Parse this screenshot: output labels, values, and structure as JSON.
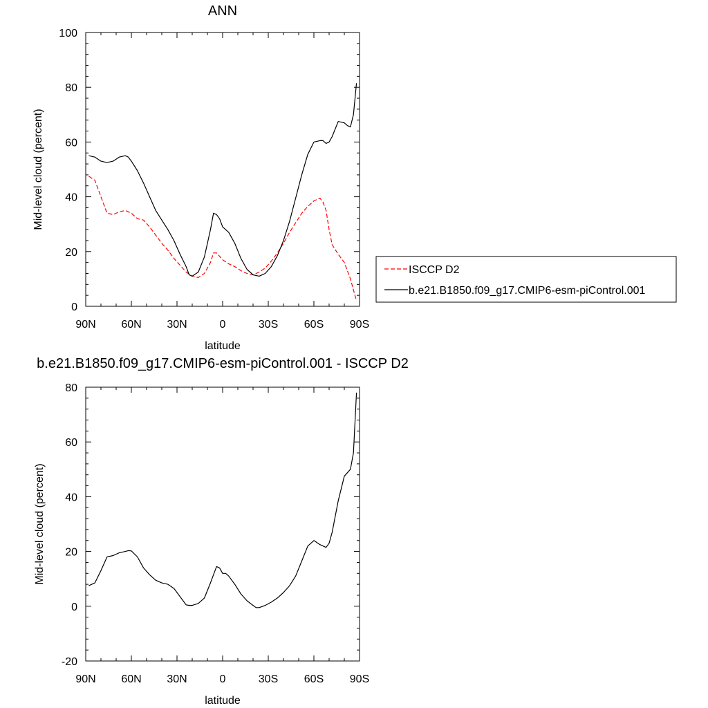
{
  "chart_data": [
    {
      "type": "line",
      "title": "ANN",
      "xlabel": "latitude",
      "ylabel": "Mid-level cloud (percent)",
      "ylim": [
        0,
        100
      ],
      "xlim": [
        90,
        -90
      ],
      "xticks": [
        90,
        60,
        30,
        0,
        -30,
        -60,
        -90
      ],
      "xtick_labels": [
        "90N",
        "60N",
        "30N",
        "0",
        "30S",
        "60S",
        "90S"
      ],
      "yticks": [
        0,
        20,
        40,
        60,
        80,
        100
      ],
      "ytick_labels": [
        "0",
        "20",
        "40",
        "60",
        "80",
        "100"
      ],
      "grid": false,
      "legend_position": "right",
      "series": [
        {
          "name": "ISCCP D2",
          "color": "#ff0000",
          "dash": "dashed",
          "x": [
            88,
            84,
            80,
            76,
            72,
            68,
            64,
            60,
            56,
            52,
            48,
            44,
            40,
            36,
            32,
            28,
            24,
            20,
            16,
            12,
            8,
            6,
            4,
            0,
            -4,
            -8,
            -12,
            -16,
            -20,
            -24,
            -28,
            -32,
            -36,
            -40,
            -44,
            -48,
            -52,
            -56,
            -60,
            -64,
            -66,
            -68,
            -70,
            -72,
            -76,
            -80,
            -84,
            -86,
            -88
          ],
          "y": [
            47.5,
            46,
            40,
            34,
            33.5,
            34.5,
            35,
            34,
            32,
            31.5,
            29,
            26,
            23,
            20.5,
            17.5,
            15,
            12.5,
            11,
            10.5,
            12,
            16,
            19.5,
            19.5,
            17,
            15.5,
            14.5,
            13,
            12,
            11.5,
            12.5,
            14,
            16.5,
            19.5,
            23,
            27,
            30.5,
            34,
            36.5,
            38.5,
            39.5,
            38,
            35,
            28,
            22.5,
            19,
            16,
            10,
            6,
            2
          ]
        },
        {
          "name": "b.e21.B1850.f09_g17.CMIP6-esm-piControl.001",
          "color": "#000000",
          "dash": "solid",
          "x": [
            88,
            84,
            80,
            76,
            72,
            68,
            64,
            62,
            60,
            56,
            52,
            48,
            44,
            40,
            36,
            32,
            28,
            24,
            22,
            20,
            16,
            12,
            8,
            6,
            4,
            2,
            0,
            -4,
            -8,
            -12,
            -16,
            -20,
            -24,
            -28,
            -32,
            -36,
            -40,
            -44,
            -48,
            -52,
            -56,
            -60,
            -64,
            -66,
            -68,
            -70,
            -72,
            -76,
            -80,
            -82,
            -84,
            -86,
            -88
          ],
          "y": [
            55,
            54.5,
            53,
            52.5,
            53,
            54.5,
            55,
            54.5,
            53,
            49.5,
            45,
            40,
            35,
            31.5,
            28,
            24,
            19,
            14.5,
            11.5,
            11,
            12.5,
            18,
            28,
            34,
            33.5,
            32,
            29,
            27,
            23,
            17.5,
            13.5,
            11.5,
            11,
            12,
            14.5,
            18.5,
            24,
            31,
            39.5,
            48,
            55.5,
            60,
            60.5,
            60.5,
            59.5,
            60,
            62,
            67.5,
            67,
            66,
            65.5,
            70,
            81.5
          ]
        }
      ]
    },
    {
      "type": "line",
      "title": "b.e21.B1850.f09_g17.CMIP6-esm-piControl.001 - ISCCP D2",
      "xlabel": "latitude",
      "ylabel": "Mid-level cloud (percent)",
      "ylim": [
        -20,
        80
      ],
      "xlim": [
        90,
        -90
      ],
      "xticks": [
        90,
        60,
        30,
        0,
        -30,
        -60,
        -90
      ],
      "xtick_labels": [
        "90N",
        "60N",
        "30N",
        "0",
        "30S",
        "60S",
        "90S"
      ],
      "yticks": [
        -20,
        0,
        20,
        40,
        60,
        80
      ],
      "ytick_labels": [
        "-20",
        "0",
        "20",
        "40",
        "60",
        "80"
      ],
      "grid": false,
      "series": [
        {
          "color": "#000000",
          "dash": "solid",
          "x": [
            88,
            86,
            84,
            80,
            76,
            72,
            68,
            64,
            62,
            60,
            56,
            52,
            48,
            44,
            40,
            36,
            32,
            28,
            26,
            24,
            22,
            20,
            16,
            12,
            8,
            4,
            2,
            0,
            -2,
            -4,
            -8,
            -12,
            -16,
            -20,
            -22,
            -24,
            -28,
            -32,
            -36,
            -40,
            -44,
            -48,
            -52,
            -56,
            -60,
            -64,
            -66,
            -68,
            -70,
            -72,
            -76,
            -80,
            -84,
            -86,
            -88
          ],
          "y": [
            7.5,
            8,
            8.5,
            13,
            18,
            18.5,
            19.5,
            20,
            20.3,
            20.2,
            18,
            14,
            11.5,
            9.5,
            8.5,
            8,
            6.5,
            3.5,
            2,
            0.5,
            0.3,
            0.3,
            1,
            3,
            8.5,
            14.5,
            14,
            12,
            12,
            11,
            8,
            4.5,
            2,
            0.3,
            -0.5,
            -0.5,
            0.3,
            1.5,
            3,
            5,
            7.5,
            11,
            16.5,
            22,
            24,
            22.5,
            22,
            21.5,
            23,
            27,
            38.5,
            47.5,
            50,
            56,
            78
          ]
        }
      ]
    }
  ]
}
